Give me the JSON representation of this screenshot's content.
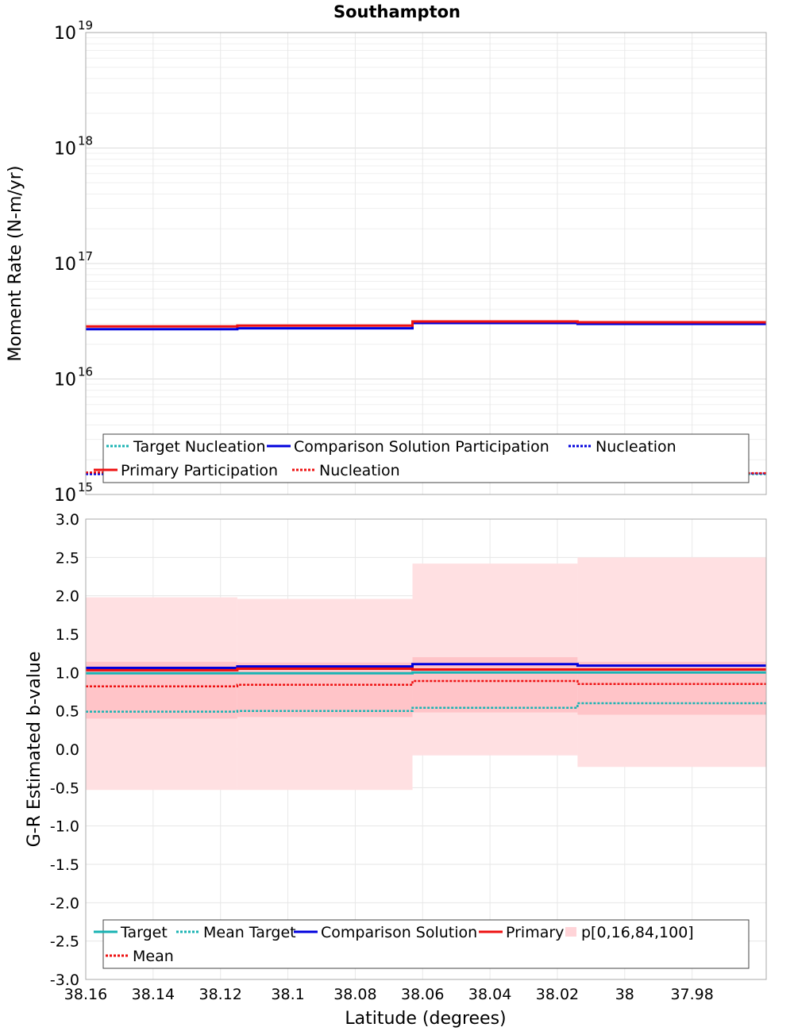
{
  "figure": {
    "title": "Southampton"
  },
  "colors": {
    "target": "#1ab3b3",
    "comparison": "#0000dd",
    "primary": "#ee1111",
    "band_outer": "#ffe0e2",
    "band_inner": "#ffc4c8",
    "grid": "#e6e6e6",
    "frame": "#aaaaaa"
  },
  "chart_data": [
    {
      "type": "line",
      "subtype": "step",
      "title": "Southampton",
      "xlabel": "",
      "ylabel": "Moment Rate (N-m/yr)",
      "yscale": "log",
      "ylim": [
        1000000000000000.0,
        1e+19
      ],
      "xlim": [
        38.16,
        37.958
      ],
      "x_reversed": true,
      "grid": true,
      "y_ticks": [
        {
          "base": "10",
          "exp": "15"
        },
        {
          "base": "10",
          "exp": "16"
        },
        {
          "base": "10",
          "exp": "17"
        },
        {
          "base": "10",
          "exp": "18"
        },
        {
          "base": "10",
          "exp": "19"
        }
      ],
      "x_edges": [
        38.16,
        38.115,
        38.063,
        38.014,
        37.958
      ],
      "series": [
        {
          "name": "Target Nucleation",
          "style": "dotted",
          "color": "#1ab3b3",
          "values": [
            1550000000000000.0,
            1580000000000000.0,
            1600000000000000.0,
            1500000000000000.0
          ]
        },
        {
          "name": "Comparison Solution Participation",
          "style": "solid",
          "color": "#0000dd",
          "values": [
            2.7e+16,
            2.75e+16,
            3.05e+16,
            3e+16
          ]
        },
        {
          "name": "Nucleation",
          "style": "dotted",
          "color": "#0000dd",
          "values": [
            1500000000000000.0,
            1550000000000000.0,
            1600000000000000.0,
            1520000000000000.0
          ]
        },
        {
          "name": "Primary Participation",
          "style": "solid",
          "color": "#ee1111",
          "values": [
            2.85e+16,
            2.9e+16,
            3.15e+16,
            3.1e+16
          ]
        },
        {
          "name": "Nucleation",
          "style": "dotted",
          "color": "#ee1111",
          "values": [
            1550000000000000.0,
            1570000000000000.0,
            1620000000000000.0,
            1530000000000000.0
          ]
        }
      ],
      "legend": {
        "position": "bottom",
        "entries": [
          {
            "label": "Target Nucleation",
            "style": "dotted",
            "color": "#1ab3b3"
          },
          {
            "label": "Comparison Solution Participation",
            "style": "solid",
            "color": "#0000dd"
          },
          {
            "label": "Nucleation",
            "style": "dotted",
            "color": "#0000dd"
          },
          {
            "label": "Primary Participation",
            "style": "solid",
            "color": "#ee1111"
          },
          {
            "label": "Nucleation",
            "style": "dotted",
            "color": "#ee1111"
          }
        ]
      }
    },
    {
      "type": "line",
      "subtype": "step",
      "xlabel": "Latitude (degrees)",
      "ylabel": "G-R Estimated b-value",
      "ylim": [
        -3.0,
        3.0
      ],
      "xlim": [
        38.16,
        37.958
      ],
      "x_reversed": true,
      "grid": true,
      "y_ticks": [
        "3.0",
        "2.5",
        "2.0",
        "1.5",
        "1.0",
        "0.5",
        "0.0",
        "-0.5",
        "-1.0",
        "-1.5",
        "-2.0",
        "-2.5",
        "-3.0"
      ],
      "y_tick_values": [
        3.0,
        2.5,
        2.0,
        1.5,
        1.0,
        0.5,
        0.0,
        -0.5,
        -1.0,
        -1.5,
        -2.0,
        -2.5,
        -3.0
      ],
      "x_ticks": [
        "38.16",
        "38.14",
        "38.12",
        "38.1",
        "38.08",
        "38.06",
        "38.04",
        "38.02",
        "38",
        "37.98"
      ],
      "x_tick_values": [
        38.16,
        38.14,
        38.12,
        38.1,
        38.08,
        38.06,
        38.04,
        38.02,
        38.0,
        37.98
      ],
      "x_edges": [
        38.16,
        38.115,
        38.063,
        38.014,
        37.958
      ],
      "bands": {
        "name": "p[0,16,84,100]",
        "p0": [
          -0.53,
          -0.53,
          -0.08,
          -0.23
        ],
        "p16": [
          0.4,
          0.42,
          0.48,
          0.45
        ],
        "p84": [
          1.14,
          1.13,
          1.2,
          1.14
        ],
        "p100": [
          1.98,
          1.96,
          2.42,
          2.5
        ]
      },
      "series": [
        {
          "name": "Target",
          "style": "solid",
          "color": "#1ab3b3",
          "values": [
            0.99,
            0.99,
            1.0,
            1.0
          ]
        },
        {
          "name": "Mean Target",
          "style": "dotted",
          "color": "#1ab3b3",
          "values": [
            0.49,
            0.5,
            0.54,
            0.6
          ]
        },
        {
          "name": "Comparison Solution",
          "style": "solid",
          "color": "#0000dd",
          "values": [
            1.06,
            1.08,
            1.11,
            1.09
          ]
        },
        {
          "name": "Primary",
          "style": "solid",
          "color": "#ee1111",
          "values": [
            1.03,
            1.05,
            1.04,
            1.04
          ]
        },
        {
          "name": "Mean",
          "style": "dotted",
          "color": "#ee1111",
          "values": [
            0.82,
            0.84,
            0.89,
            0.85
          ]
        }
      ],
      "legend": {
        "position": "bottom",
        "entries": [
          {
            "label": "Target",
            "style": "solid",
            "color": "#1ab3b3"
          },
          {
            "label": "Mean Target",
            "style": "dotted",
            "color": "#1ab3b3"
          },
          {
            "label": "Comparison Solution",
            "style": "solid",
            "color": "#0000dd"
          },
          {
            "label": "Primary",
            "style": "solid",
            "color": "#ee1111"
          },
          {
            "label": "p[0,16,84,100]",
            "style": "band",
            "color": "#ffd4d8"
          },
          {
            "label": "Mean",
            "style": "dotted",
            "color": "#ee1111"
          }
        ]
      }
    }
  ]
}
